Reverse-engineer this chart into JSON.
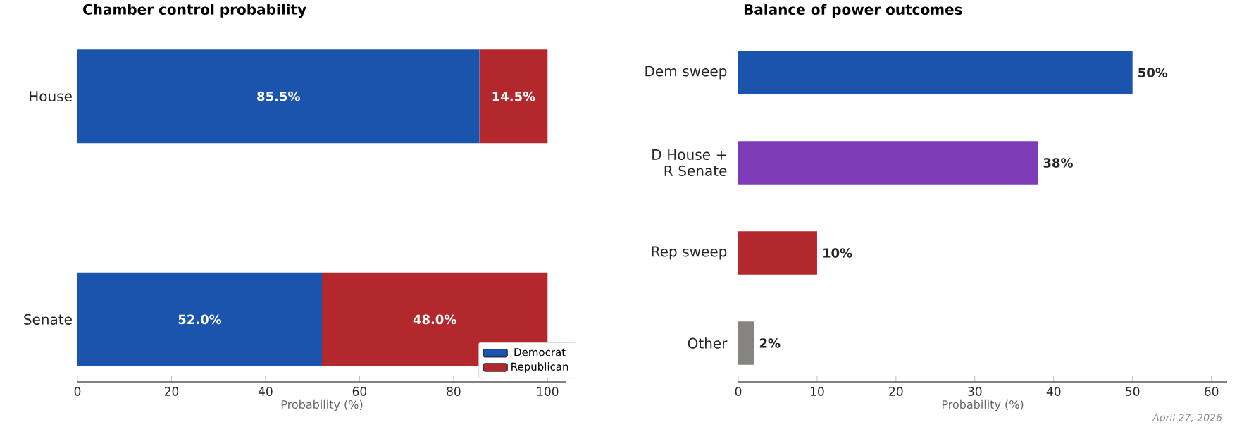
{
  "chart_data": [
    {
      "type": "bar",
      "orientation": "horizontal",
      "stacked": true,
      "title": "Chamber control probability",
      "xlabel": "Probability (%)",
      "categories": [
        "House",
        "Senate"
      ],
      "series": [
        {
          "name": "Democrat",
          "color": "#1a54ad",
          "values": [
            85.5,
            52.0
          ],
          "value_labels": [
            "85.5%",
            "52.0%"
          ]
        },
        {
          "name": "Republican",
          "color": "#b3282c",
          "values": [
            14.5,
            48.0
          ],
          "value_labels": [
            "14.5%",
            "48.0%"
          ]
        }
      ],
      "xlim": [
        0,
        104
      ],
      "xticks": [
        0,
        20,
        40,
        60,
        80,
        100
      ],
      "legend": "bottom right"
    },
    {
      "type": "bar",
      "orientation": "horizontal",
      "title": "Balance of power outcomes",
      "xlabel": "Probability (%)",
      "categories": [
        "Dem sweep",
        "D House + R Senate",
        "Rep sweep",
        "Other"
      ],
      "values": [
        50,
        38,
        10,
        2
      ],
      "colors": [
        "#1a54ad",
        "#7d3bb8",
        "#b3282c",
        "#85847e"
      ],
      "value_labels": [
        "50%",
        "38%",
        "10%",
        "2%"
      ],
      "xlim": [
        0,
        62
      ],
      "xticks": [
        0,
        10,
        20,
        30,
        40,
        50,
        60
      ],
      "annotations": [
        "April 27, 2026"
      ]
    }
  ]
}
